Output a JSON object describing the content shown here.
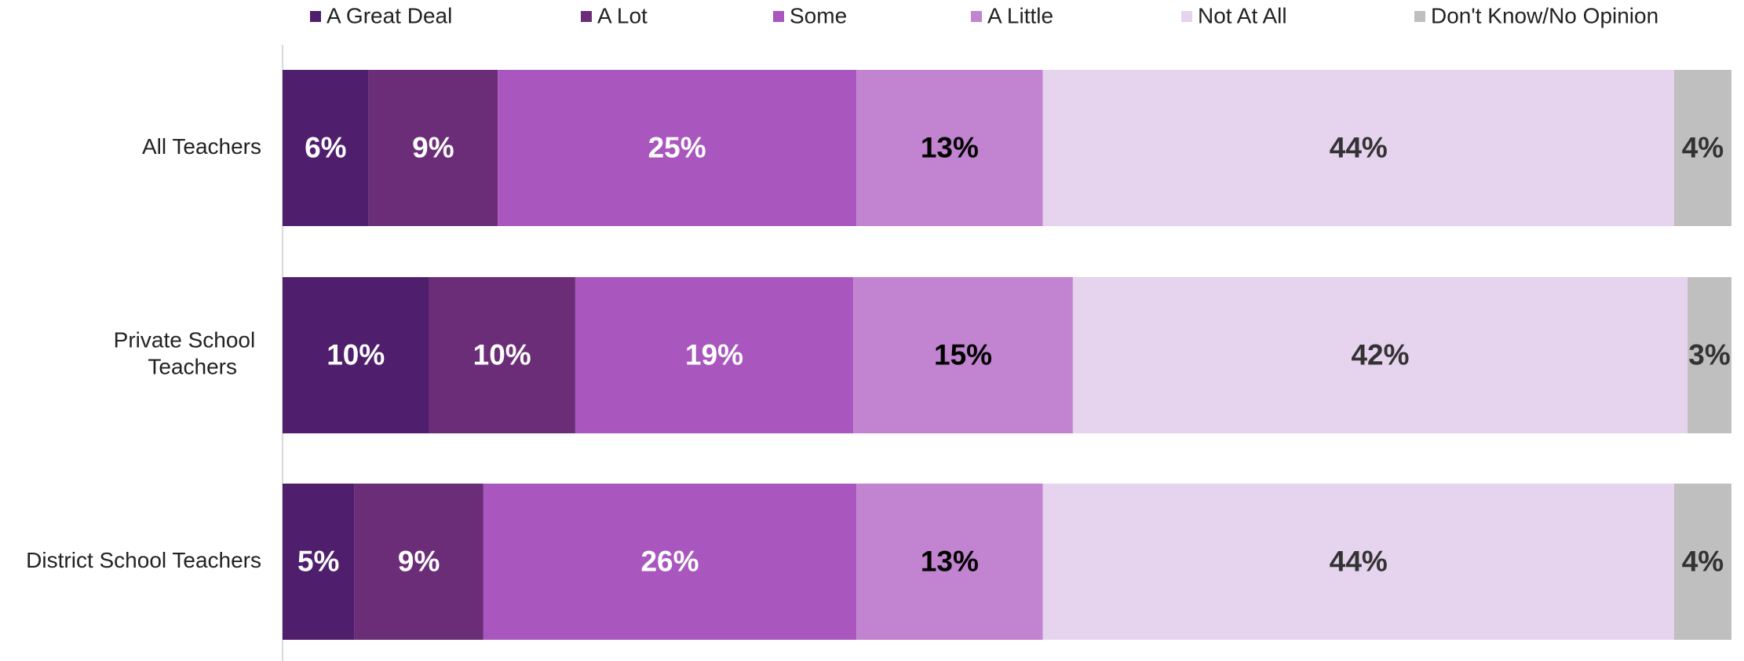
{
  "chart_data": {
    "type": "stacked-bar-horizontal",
    "categories": [
      "All Teachers",
      "Private School\nTeachers",
      "District School Teachers"
    ],
    "series": [
      {
        "name": "A Great Deal",
        "color": "#4f1f6e",
        "label_color": "#ffffff",
        "values": [
          6,
          10,
          5
        ],
        "value_labels": [
          "6%",
          "10%",
          "5%"
        ]
      },
      {
        "name": "A Lot",
        "color": "#6b2d78",
        "label_color": "#ffffff",
        "values": [
          9,
          10,
          9
        ],
        "value_labels": [
          "9%",
          "10%",
          "9%"
        ]
      },
      {
        "name": "Some",
        "color": "#a957be",
        "label_color": "#ffffff",
        "values": [
          25,
          19,
          26
        ],
        "value_labels": [
          "25%",
          "19%",
          "26%"
        ]
      },
      {
        "name": "A Little",
        "color": "#c283d0",
        "label_color": "#000000",
        "values": [
          13,
          15,
          13
        ],
        "value_labels": [
          "13%",
          "15%",
          "13%"
        ]
      },
      {
        "name": "Not At All",
        "color": "#e6d3ee",
        "label_color": "#333333",
        "values": [
          44,
          42,
          44
        ],
        "value_labels": [
          "44%",
          "42%",
          "44%"
        ]
      },
      {
        "name": "Don't Know/No Opinion",
        "color": "#bfbfbf",
        "label_color": "#333333",
        "values": [
          4,
          3,
          4
        ],
        "value_labels": [
          "4%",
          "3%",
          "4%"
        ]
      }
    ],
    "legend": "top"
  }
}
